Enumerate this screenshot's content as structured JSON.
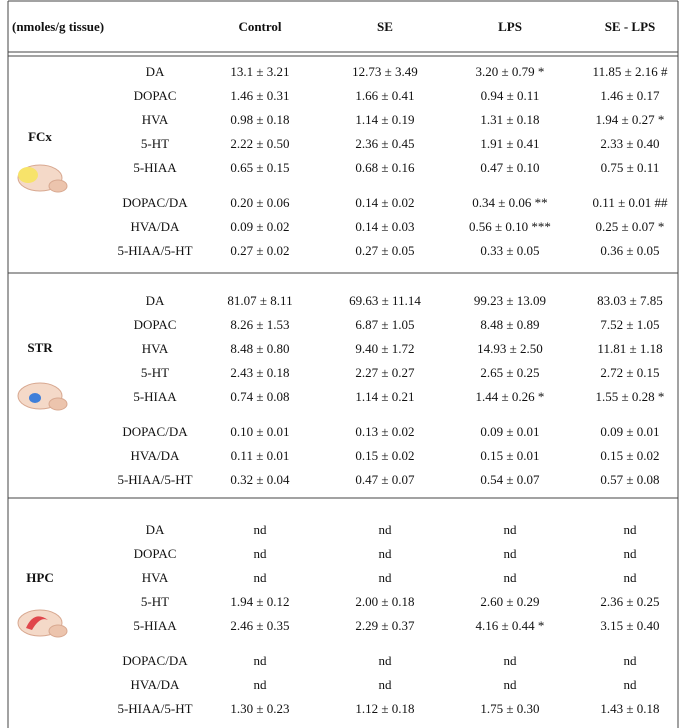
{
  "table": {
    "header": [
      "(nmoles/g tissue)",
      "Control",
      "SE",
      "LPS",
      "SE - LPS"
    ],
    "sections": [
      {
        "label": "FCx",
        "rows": [
          {
            "metric": "DA",
            "values": [
              "13.1 ± 3.21",
              "12.73 ± 3.49",
              "3.20 ± 0.79 *",
              "11.85 ± 2.16 #"
            ]
          },
          {
            "metric": "DOPAC",
            "values": [
              "1.46 ± 0.31",
              "1.66 ± 0.41",
              "0.94 ± 0.11",
              "1.46 ± 0.17"
            ]
          },
          {
            "metric": "HVA",
            "values": [
              "0.98 ± 0.18",
              "1.14 ± 0.19",
              "1.31 ± 0.18",
              "1.94 ± 0.27 *"
            ]
          },
          {
            "metric": "5-HT",
            "values": [
              "2.22 ± 0.50",
              "2.36 ± 0.45",
              "1.91 ± 0.41",
              "2.33 ± 0.40"
            ]
          },
          {
            "metric": "5-HIAA",
            "values": [
              "0.65 ± 0.15",
              "0.68 ± 0.16",
              "0.47 ± 0.10",
              "0.75 ± 0.11"
            ]
          },
          {
            "metric": "DOPAC/DA",
            "values": [
              "0.20 ± 0.06",
              "0.14 ± 0.02",
              "0.34 ± 0.06 **",
              "0.11 ± 0.01 ##"
            ]
          },
          {
            "metric": "HVA/DA",
            "values": [
              "0.09 ± 0.02",
              "0.14 ± 0.03",
              "0.56 ± 0.10 ***",
              "0.25 ± 0.07 *"
            ]
          },
          {
            "metric": "5-HIAA/5-HT",
            "values": [
              "0.27 ± 0.02",
              "0.27 ± 0.05",
              "0.33 ± 0.05",
              "0.36 ± 0.05"
            ]
          }
        ]
      },
      {
        "label": "STR",
        "rows": [
          {
            "metric": "DA",
            "values": [
              "81.07 ± 8.11",
              "69.63 ± 11.14",
              "99.23 ± 13.09",
              "83.03 ± 7.85"
            ]
          },
          {
            "metric": "DOPAC",
            "values": [
              "8.26 ± 1.53",
              "6.87 ± 1.05",
              "8.48 ± 0.89",
              "7.52 ± 1.05"
            ]
          },
          {
            "metric": "HVA",
            "values": [
              "8.48 ± 0.80",
              "9.40 ± 1.72",
              "14.93 ± 2.50",
              "11.81 ± 1.18"
            ]
          },
          {
            "metric": "5-HT",
            "values": [
              "2.43 ± 0.18",
              "2.27 ± 0.27",
              "2.65 ± 0.25",
              "2.72 ± 0.15"
            ]
          },
          {
            "metric": "5-HIAA",
            "values": [
              "0.74 ± 0.08",
              "1.14 ± 0.21",
              "1.44 ± 0.26 *",
              "1.55 ± 0.28 *"
            ]
          },
          {
            "metric": "DOPAC/DA",
            "values": [
              "0.10 ± 0.01",
              "0.13 ± 0.02",
              "0.09 ± 0.01",
              "0.09 ± 0.01"
            ]
          },
          {
            "metric": "HVA/DA",
            "values": [
              "0.11 ± 0.01",
              "0.15 ± 0.02",
              "0.15 ± 0.01",
              "0.15 ± 0.02"
            ]
          },
          {
            "metric": "5-HIAA/5-HT",
            "values": [
              "0.32 ± 0.04",
              "0.47 ± 0.07",
              "0.54 ± 0.07",
              "0.57 ± 0.08"
            ]
          }
        ]
      },
      {
        "label": "HPC",
        "rows": [
          {
            "metric": "DA",
            "values": [
              "nd",
              "nd",
              "nd",
              "nd"
            ]
          },
          {
            "metric": "DOPAC",
            "values": [
              "nd",
              "nd",
              "nd",
              "nd"
            ]
          },
          {
            "metric": "HVA",
            "values": [
              "nd",
              "nd",
              "nd",
              "nd"
            ]
          },
          {
            "metric": "5-HT",
            "values": [
              "1.94 ± 0.12",
              "2.00 ± 0.18",
              "2.60 ± 0.29",
              "2.36 ± 0.25"
            ]
          },
          {
            "metric": "5-HIAA",
            "values": [
              "2.46 ± 0.35",
              "2.29 ± 0.37",
              "4.16 ± 0.44 *",
              "3.15 ± 0.40"
            ]
          },
          {
            "metric": "DOPAC/DA",
            "values": [
              "nd",
              "nd",
              "nd",
              "nd"
            ]
          },
          {
            "metric": "HVA/DA",
            "values": [
              "nd",
              "nd",
              "nd",
              "nd"
            ]
          },
          {
            "metric": "5-HIAA/5-HT",
            "values": [
              "1.30 ± 0.23",
              "1.12 ± 0.18",
              "1.75 ± 0.30",
              "1.43 ± 0.18"
            ]
          }
        ]
      }
    ]
  }
}
